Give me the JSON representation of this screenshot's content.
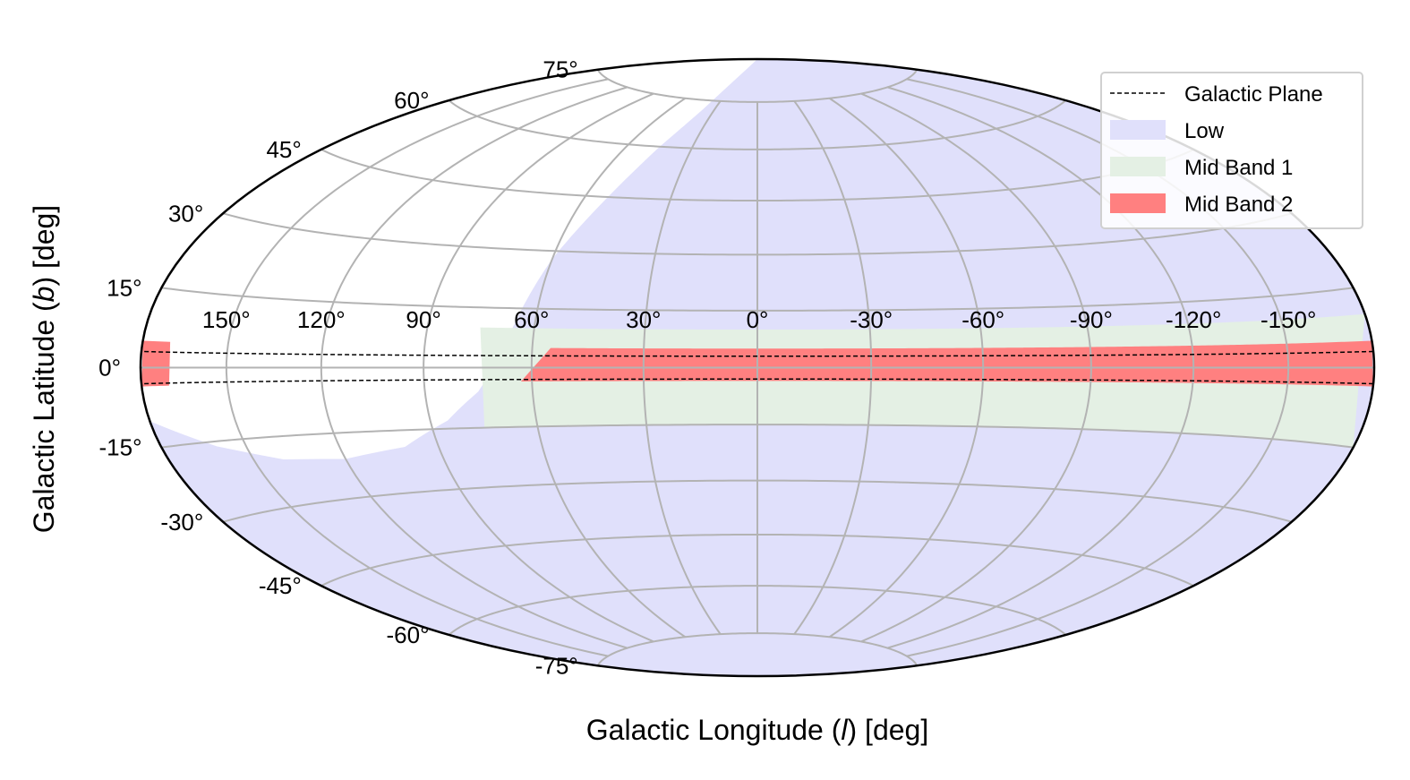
{
  "chart_data": {
    "type": "area",
    "projection": "hammer-aitoff",
    "xlabel_parts": [
      "Galactic Longitude (",
      "l",
      ") [deg]"
    ],
    "ylabel_parts": [
      "Galactic Latitude (",
      "b",
      ") [deg]"
    ],
    "x_ticks": [
      150,
      120,
      90,
      60,
      30,
      0,
      -30,
      -60,
      -90,
      -120,
      -150
    ],
    "x_tick_labels": [
      "150°",
      "120°",
      "90°",
      "60°",
      "30°",
      "0°",
      "-30°",
      "-60°",
      "-90°",
      "-120°",
      "-150°"
    ],
    "y_ticks": [
      75,
      60,
      45,
      30,
      15,
      0,
      -15,
      -30,
      -45,
      -60,
      -75
    ],
    "y_tick_labels": [
      "75°",
      "60°",
      "45°",
      "30°",
      "15°",
      "0°",
      "-15°",
      "-30°",
      "-45°",
      "-60°",
      "-75°"
    ],
    "xlim": [
      -180,
      180
    ],
    "ylim": [
      -90,
      90
    ],
    "grid": true,
    "legend_position": "top-right",
    "legend": [
      {
        "key": "plane",
        "label": "Galactic Plane",
        "style": "dashed-line",
        "color": "#000000"
      },
      {
        "key": "low",
        "label": "Low",
        "style": "patch",
        "color": "#e0e0fb"
      },
      {
        "key": "mid1",
        "label": "Mid Band 1",
        "style": "patch",
        "color": "#e4f0e4"
      },
      {
        "key": "mid2",
        "label": "Mid Band 2",
        "style": "patch",
        "color": "#ff8080"
      }
    ],
    "regions": {
      "low": {
        "description_boundary": "covers the whole sky except a region at positive longitudes",
        "excluded_boundary_l_b": [
          [
            180,
            -10
          ],
          [
            160,
            -16
          ],
          [
            140,
            -20
          ],
          [
            120,
            -21
          ],
          [
            100,
            -19
          ],
          [
            85,
            -13
          ],
          [
            75,
            -6
          ],
          [
            70,
            0
          ],
          [
            66,
            10
          ],
          [
            60,
            28
          ],
          [
            52,
            45
          ],
          [
            45,
            60
          ],
          [
            38,
            72
          ],
          [
            30,
            90
          ]
        ]
      },
      "mid_band_1": {
        "b_range": [
          -15,
          10
        ],
        "l_range": [
          -180,
          75
        ]
      },
      "mid_band_2": {
        "b_range": [
          -3.5,
          5
        ],
        "l_range_main": [
          -180,
          55
        ],
        "l_range_wrap": [
          170,
          180
        ],
        "left_edge_l_b": [
          [
            55,
            5
          ],
          [
            63,
            -3.5
          ]
        ]
      },
      "galactic_plane": {
        "b_values": [
          -3,
          3
        ],
        "style": "dashed"
      }
    }
  }
}
